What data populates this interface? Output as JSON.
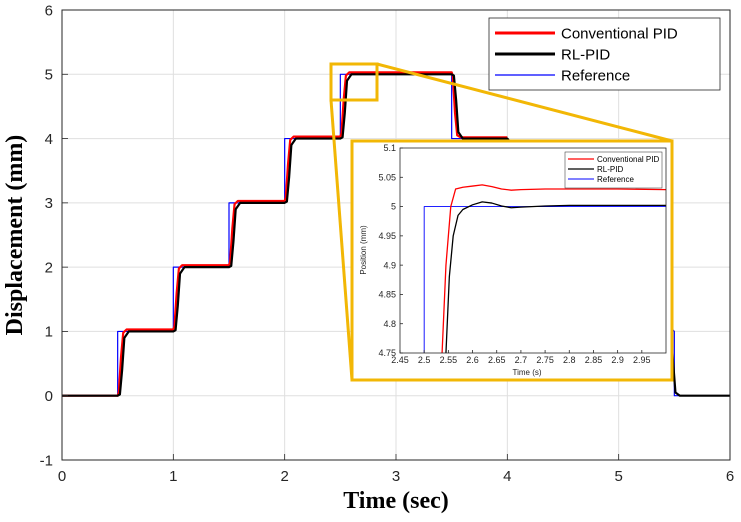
{
  "chart_data": [
    {
      "type": "line",
      "xlabel": "Time (sec)",
      "ylabel": "Displacement (mm)",
      "xlim": [
        0,
        6
      ],
      "ylim": [
        -1,
        6
      ],
      "xticks": [
        "0",
        "1",
        "2",
        "3",
        "4",
        "5",
        "6"
      ],
      "yticks": [
        "-1",
        "0",
        "1",
        "2",
        "3",
        "4",
        "5",
        "6"
      ],
      "grid": true,
      "legend_position": "top-right",
      "series": [
        {
          "name": "Conventional PID",
          "color": "#ff0000",
          "x": [
            0,
            0.5,
            0.51,
            0.53,
            0.55,
            0.58,
            1.0,
            1.01,
            1.03,
            1.05,
            1.08,
            1.5,
            1.51,
            1.53,
            1.55,
            1.58,
            2.0,
            2.01,
            2.03,
            2.05,
            2.08,
            2.5,
            2.51,
            2.53,
            2.55,
            2.58,
            3.5,
            3.51,
            3.53,
            3.55,
            3.58,
            4.0
          ],
          "y": [
            0,
            0,
            0.05,
            0.6,
            0.98,
            1.03,
            1.03,
            1.08,
            1.6,
            1.98,
            2.03,
            2.03,
            2.08,
            2.6,
            2.98,
            3.03,
            3.03,
            3.08,
            3.6,
            3.98,
            4.03,
            4.03,
            4.08,
            4.6,
            4.98,
            5.03,
            5.03,
            4.98,
            4.4,
            4.05,
            4.02,
            4.02
          ]
        },
        {
          "name": "RL-PID",
          "color": "#000000",
          "x": [
            0,
            0.5,
            0.52,
            0.54,
            0.56,
            0.6,
            1.0,
            1.02,
            1.04,
            1.06,
            1.1,
            1.5,
            1.52,
            1.54,
            1.56,
            1.6,
            2.0,
            2.02,
            2.04,
            2.06,
            2.1,
            2.5,
            2.52,
            2.54,
            2.56,
            2.6,
            3.5,
            3.52,
            3.54,
            3.56,
            3.6,
            4.0,
            5.45,
            5.47,
            5.49,
            5.51,
            5.55,
            6.0
          ],
          "y": [
            0,
            0,
            0.02,
            0.4,
            0.9,
            1.0,
            1.0,
            1.02,
            1.4,
            1.9,
            2.0,
            2.0,
            2.02,
            2.4,
            2.9,
            3.0,
            3.0,
            3.02,
            3.4,
            3.9,
            4.0,
            4.0,
            4.02,
            4.4,
            4.9,
            5.0,
            5.0,
            4.98,
            4.6,
            4.1,
            4.0,
            4.0,
            1.0,
            0.95,
            0.5,
            0.05,
            0.0,
            0.0
          ]
        },
        {
          "name": "Reference",
          "color": "#0000ff",
          "x": [
            0,
            0.5,
            0.5,
            1.0,
            1.0,
            1.5,
            1.5,
            2.0,
            2.0,
            2.5,
            2.5,
            3.5,
            3.5,
            4.0,
            5.5,
            5.5,
            6.0
          ],
          "y": [
            0,
            0,
            1,
            1,
            2,
            2,
            3,
            3,
            4,
            4,
            5,
            5,
            4,
            4,
            1,
            0,
            0
          ]
        }
      ]
    },
    {
      "type": "line",
      "role": "inset-zoom",
      "xlabel": "Time (s)",
      "ylabel": "Position (mm)",
      "xlim": [
        2.45,
        3.0
      ],
      "ylim": [
        4.75,
        5.1
      ],
      "xticks": [
        "2.45",
        "2.5",
        "2.55",
        "2.6",
        "2.65",
        "2.7",
        "2.75",
        "2.8",
        "2.85",
        "2.9",
        "2.95"
      ],
      "yticks": [
        "4.75",
        "4.8",
        "4.85",
        "4.9",
        "4.95",
        "5",
        "5.05",
        "5.1"
      ],
      "grid": false,
      "legend_position": "top-right",
      "series": [
        {
          "name": "Conventional PID",
          "color": "#ff0000",
          "x": [
            2.537,
            2.545,
            2.555,
            2.565,
            2.58,
            2.6,
            2.62,
            2.64,
            2.66,
            2.68,
            2.7,
            2.75,
            2.8,
            2.9,
            3.0
          ],
          "y": [
            4.75,
            4.9,
            5.0,
            5.03,
            5.033,
            5.035,
            5.037,
            5.034,
            5.03,
            5.028,
            5.029,
            5.03,
            5.03,
            5.03,
            5.029
          ]
        },
        {
          "name": "RL-PID",
          "color": "#000000",
          "x": [
            2.545,
            2.552,
            2.56,
            2.57,
            2.58,
            2.6,
            2.62,
            2.64,
            2.66,
            2.68,
            2.7,
            2.75,
            2.8,
            2.9,
            3.0
          ],
          "y": [
            4.75,
            4.88,
            4.95,
            4.985,
            4.995,
            5.003,
            5.008,
            5.006,
            5.001,
            4.998,
            4.999,
            5.001,
            5.002,
            5.002,
            5.002
          ]
        },
        {
          "name": "Reference",
          "color": "#0000ff",
          "x": [
            2.5,
            2.5,
            3.0
          ],
          "y": [
            4.75,
            5.0,
            5.0
          ]
        }
      ]
    }
  ]
}
